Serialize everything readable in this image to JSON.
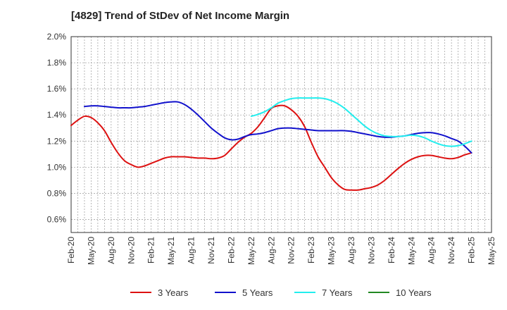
{
  "title": "[4829]  Trend of StDev of Net Income Margin",
  "chart_data": {
    "type": "line",
    "title": "[4829]  Trend of StDev of Net Income Margin",
    "xlabel": "",
    "ylabel": "",
    "x_tick_labels": [
      "Feb-20",
      "May-20",
      "Aug-20",
      "Nov-20",
      "Feb-21",
      "May-21",
      "Aug-21",
      "Nov-21",
      "Feb-22",
      "May-22",
      "Aug-22",
      "Nov-22",
      "Feb-23",
      "May-23",
      "Aug-23",
      "Nov-23",
      "Feb-24",
      "May-24",
      "Aug-24",
      "Nov-24",
      "Feb-25",
      "May-25"
    ],
    "y_tick_labels": [
      "0.6%",
      "0.8%",
      "1.0%",
      "1.2%",
      "1.4%",
      "1.6%",
      "1.8%",
      "2.0%"
    ],
    "ylim": [
      0.5,
      2.0
    ],
    "grid": true,
    "legend_position": "bottom",
    "series": [
      {
        "name": "3 Years",
        "color": "#dd1111",
        "x": [
          "Feb-20",
          "Mar-20",
          "Apr-20",
          "May-20",
          "Jun-20",
          "Jul-20",
          "Aug-20",
          "Sep-20",
          "Oct-20",
          "Nov-20",
          "Dec-20",
          "Jan-21",
          "Feb-21",
          "Mar-21",
          "Apr-21",
          "May-21",
          "Jun-21",
          "Jul-21",
          "Aug-21",
          "Sep-21",
          "Oct-21",
          "Nov-21",
          "Dec-21",
          "Jan-22",
          "Feb-22",
          "Mar-22",
          "Apr-22",
          "May-22",
          "Jun-22",
          "Jul-22",
          "Aug-22",
          "Sep-22",
          "Oct-22",
          "Nov-22",
          "Dec-22",
          "Jan-23",
          "Feb-23",
          "Mar-23",
          "Apr-23",
          "May-23",
          "Jun-23",
          "Jul-23",
          "Aug-23",
          "Sep-23",
          "Oct-23",
          "Nov-23",
          "Dec-23",
          "Jan-24",
          "Feb-24",
          "Mar-24",
          "Apr-24",
          "May-24",
          "Jun-24",
          "Jul-24",
          "Aug-24",
          "Sep-24",
          "Oct-24",
          "Nov-24",
          "Dec-24",
          "Jan-25",
          "Feb-25"
        ],
        "values": [
          1.32,
          1.36,
          1.39,
          1.38,
          1.34,
          1.28,
          1.19,
          1.11,
          1.05,
          1.02,
          1.0,
          1.01,
          1.03,
          1.05,
          1.07,
          1.08,
          1.08,
          1.08,
          1.075,
          1.07,
          1.07,
          1.065,
          1.07,
          1.09,
          1.14,
          1.19,
          1.23,
          1.26,
          1.31,
          1.38,
          1.45,
          1.47,
          1.47,
          1.44,
          1.39,
          1.31,
          1.19,
          1.08,
          1.0,
          0.92,
          0.865,
          0.83,
          0.825,
          0.825,
          0.835,
          0.845,
          0.865,
          0.9,
          0.945,
          0.99,
          1.03,
          1.06,
          1.08,
          1.09,
          1.09,
          1.08,
          1.07,
          1.065,
          1.075,
          1.095,
          1.11
        ]
      },
      {
        "name": "5 Years",
        "color": "#1111cc",
        "x": [
          "Apr-20",
          "May-20",
          "Jun-20",
          "Jul-20",
          "Aug-20",
          "Sep-20",
          "Oct-20",
          "Nov-20",
          "Dec-20",
          "Jan-21",
          "Feb-21",
          "Mar-21",
          "Apr-21",
          "May-21",
          "Jun-21",
          "Jul-21",
          "Aug-21",
          "Sep-21",
          "Oct-21",
          "Nov-21",
          "Dec-21",
          "Jan-22",
          "Feb-22",
          "Mar-22",
          "Apr-22",
          "May-22",
          "Jun-22",
          "Jul-22",
          "Aug-22",
          "Sep-22",
          "Oct-22",
          "Nov-22",
          "Dec-22",
          "Jan-23",
          "Feb-23",
          "Mar-23",
          "Apr-23",
          "May-23",
          "Jun-23",
          "Jul-23",
          "Aug-23",
          "Sep-23",
          "Oct-23",
          "Nov-23",
          "Dec-23",
          "Jan-24",
          "Feb-24",
          "Mar-24",
          "Apr-24",
          "May-24",
          "Jun-24",
          "Jul-24",
          "Aug-24",
          "Sep-24",
          "Oct-24",
          "Nov-24",
          "Dec-24",
          "Jan-25",
          "Feb-25"
        ],
        "values": [
          1.465,
          1.47,
          1.47,
          1.465,
          1.46,
          1.455,
          1.455,
          1.455,
          1.46,
          1.465,
          1.475,
          1.485,
          1.495,
          1.5,
          1.5,
          1.48,
          1.445,
          1.4,
          1.35,
          1.3,
          1.26,
          1.225,
          1.21,
          1.215,
          1.235,
          1.25,
          1.255,
          1.265,
          1.28,
          1.295,
          1.3,
          1.3,
          1.295,
          1.29,
          1.285,
          1.28,
          1.28,
          1.28,
          1.28,
          1.28,
          1.275,
          1.265,
          1.255,
          1.245,
          1.235,
          1.23,
          1.23,
          1.235,
          1.24,
          1.25,
          1.26,
          1.265,
          1.265,
          1.255,
          1.24,
          1.22,
          1.2,
          1.16,
          1.11
        ]
      },
      {
        "name": "7 Years",
        "color": "#22eeee",
        "x": [
          "May-22",
          "Jun-22",
          "Jul-22",
          "Aug-22",
          "Sep-22",
          "Oct-22",
          "Nov-22",
          "Dec-22",
          "Jan-23",
          "Feb-23",
          "Mar-23",
          "Apr-23",
          "May-23",
          "Jun-23",
          "Jul-23",
          "Aug-23",
          "Sep-23",
          "Oct-23",
          "Nov-23",
          "Dec-23",
          "Jan-24",
          "Feb-24",
          "Mar-24",
          "Apr-24",
          "May-24",
          "Jun-24",
          "Jul-24",
          "Aug-24",
          "Sep-24",
          "Oct-24",
          "Nov-24",
          "Dec-24",
          "Jan-25",
          "Feb-25"
        ],
        "values": [
          1.39,
          1.405,
          1.425,
          1.455,
          1.49,
          1.51,
          1.525,
          1.53,
          1.53,
          1.53,
          1.53,
          1.525,
          1.51,
          1.485,
          1.45,
          1.405,
          1.36,
          1.315,
          1.28,
          1.255,
          1.24,
          1.235,
          1.235,
          1.24,
          1.245,
          1.24,
          1.225,
          1.2,
          1.18,
          1.165,
          1.16,
          1.165,
          1.18,
          1.2
        ]
      },
      {
        "name": "10 Years",
        "color": "#228822",
        "x": [],
        "values": []
      }
    ]
  }
}
